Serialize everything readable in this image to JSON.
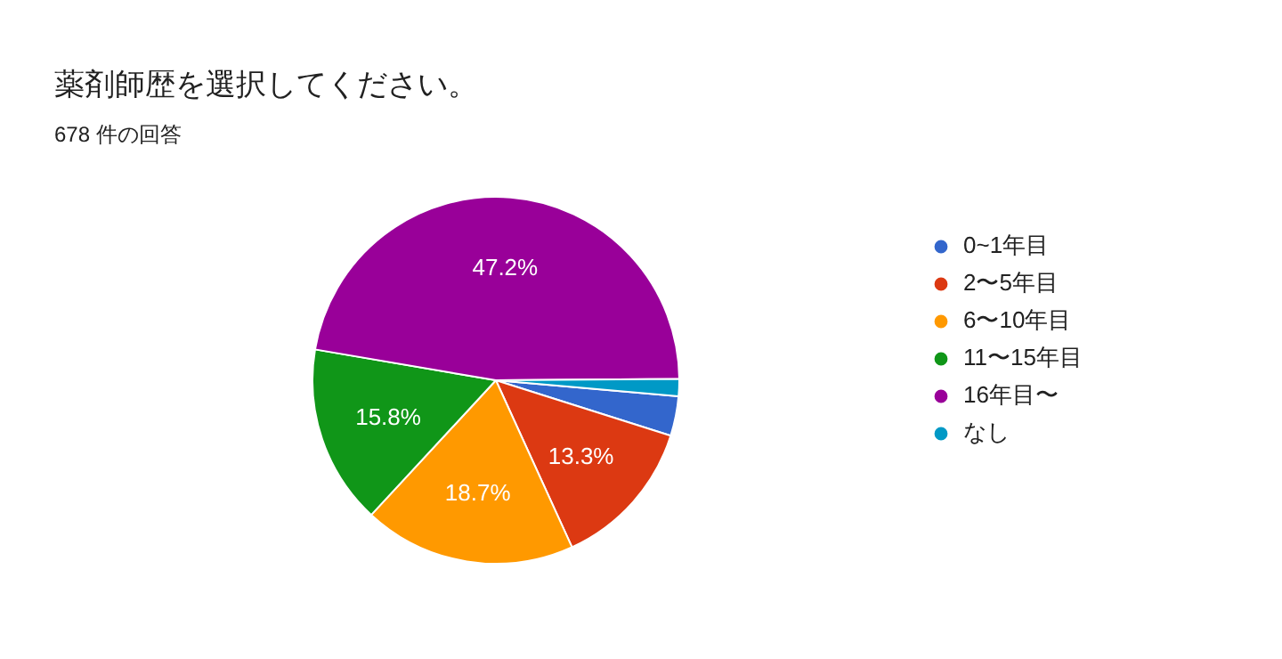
{
  "chart_data": {
    "type": "pie",
    "title": "薬剤師歴を選択してください。",
    "subtitle": "678 件の回答",
    "categories": [
      "0~1年目",
      "2〜5年目",
      "6〜10年目",
      "11〜15年目",
      "16年目〜",
      "なし"
    ],
    "values": [
      3.5,
      13.3,
      18.7,
      15.8,
      47.2,
      1.5
    ],
    "colors": [
      "#3366cc",
      "#dc3912",
      "#ff9900",
      "#109618",
      "#990099",
      "#0099c6"
    ],
    "value_labels": [
      null,
      "13.3%",
      "18.7%",
      "15.8%",
      "47.2%",
      null
    ],
    "legend": "right"
  }
}
